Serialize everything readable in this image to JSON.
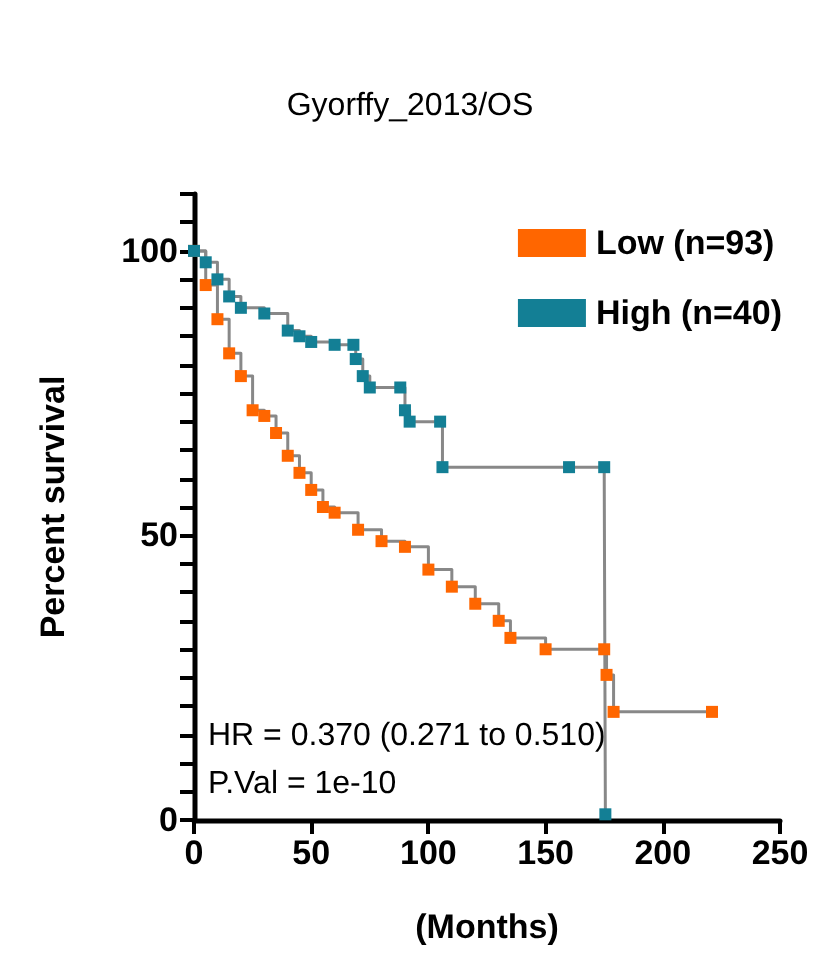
{
  "chart_data": {
    "type": "step",
    "subtitle": "Gyorffy_2013/OS",
    "xlabel": "(Months)",
    "ylabel": "Percent survival",
    "x": [
      0,
      5,
      10,
      15,
      20,
      25,
      30,
      35,
      40,
      45,
      50,
      55,
      60,
      70,
      80,
      90,
      100,
      110,
      120,
      130,
      135,
      150,
      175,
      176,
      179,
      221
    ],
    "series": [
      {
        "name": "Low (n=93)",
        "color": "#ff6600",
        "values": [
          100,
          94,
          88,
          82,
          78,
          72,
          71,
          68,
          64,
          61,
          58,
          55,
          54,
          51,
          49,
          48,
          44,
          41,
          38,
          35,
          32,
          30,
          30,
          25.5,
          19,
          19
        ]
      },
      {
        "name": "High (n=40)",
        "color": "#137f95",
        "x": [
          0,
          5,
          10,
          15,
          20,
          30,
          40,
          45,
          50,
          60,
          68,
          69,
          72,
          75,
          88,
          90,
          92,
          105,
          106,
          160,
          175,
          175.5
        ],
        "values": [
          100,
          98,
          95,
          92,
          90,
          89,
          86,
          85,
          84,
          83.5,
          83.5,
          81,
          78,
          76,
          76,
          72,
          70,
          70,
          62,
          62,
          62,
          1
        ]
      }
    ],
    "xlim": [
      0,
      250
    ],
    "xticks": [
      0,
      50,
      100,
      150,
      200,
      250
    ],
    "ylim": [
      0,
      110
    ],
    "yticks": [
      0,
      {
        "value": 5,
        "label": null
      },
      {
        "value": 10,
        "label": null
      },
      {
        "value": 15,
        "label": null
      },
      {
        "value": 20,
        "label": null
      },
      {
        "value": 25,
        "label": null
      },
      {
        "value": 30,
        "label": null
      },
      {
        "value": 35,
        "label": null
      },
      {
        "value": 40,
        "label": null
      },
      {
        "value": 45,
        "label": null
      },
      50,
      {
        "value": 55,
        "label": null
      },
      {
        "value": 60,
        "label": null
      },
      {
        "value": 65,
        "label": null
      },
      {
        "value": 70,
        "label": null
      },
      {
        "value": 75,
        "label": null
      },
      {
        "value": 80,
        "label": null
      },
      {
        "value": 85,
        "label": null
      },
      {
        "value": 90,
        "label": null
      },
      {
        "value": 95,
        "label": null
      },
      100,
      {
        "value": 105,
        "label": null
      },
      {
        "value": 110,
        "label": null
      }
    ],
    "annotations": [
      "HR = 0.370 (0.271 to 0.510)",
      "P.Val = 1e-10"
    ],
    "legend": "top right",
    "grid": false,
    "marker": "square"
  }
}
